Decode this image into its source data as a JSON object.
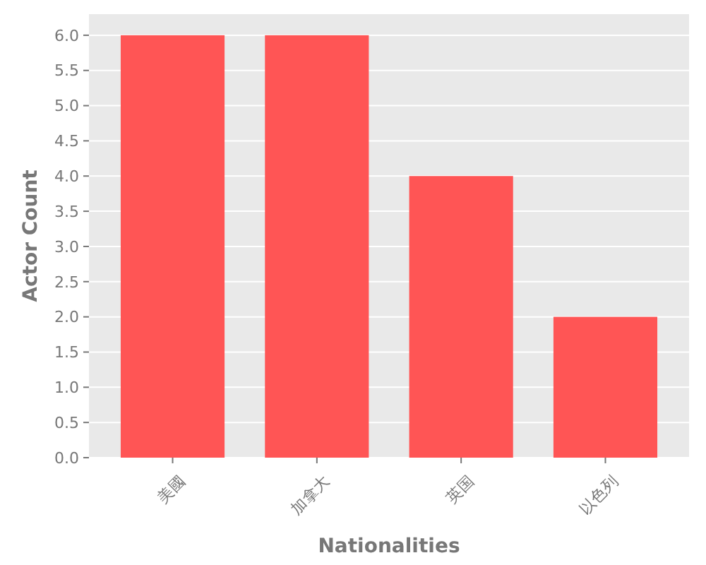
{
  "chart_data": {
    "type": "bar",
    "xlabel": "Nationalities",
    "ylabel": "Actor Count",
    "categories": [
      "美國",
      "加拿大",
      "英国",
      "以色列"
    ],
    "values": [
      6,
      6,
      4,
      2
    ],
    "color": "#ff5555",
    "ylim": [
      0,
      6.3
    ],
    "yticks": [
      {
        "value": 0,
        "label": "0.0"
      },
      {
        "value": 0.5,
        "label": "0.5"
      },
      {
        "value": 1,
        "label": "1.0"
      },
      {
        "value": 1.5,
        "label": "1.5"
      },
      {
        "value": 2,
        "label": "2.0"
      },
      {
        "value": 2.5,
        "label": "2.5"
      },
      {
        "value": 3,
        "label": "3.0"
      },
      {
        "value": 3.5,
        "label": "3.5"
      },
      {
        "value": 4,
        "label": "4.0"
      },
      {
        "value": 4.5,
        "label": "4.5"
      },
      {
        "value": 5,
        "label": "5.0"
      },
      {
        "value": 5.5,
        "label": "5.5"
      },
      {
        "value": 6,
        "label": "6.0"
      }
    ],
    "grid": "y"
  }
}
